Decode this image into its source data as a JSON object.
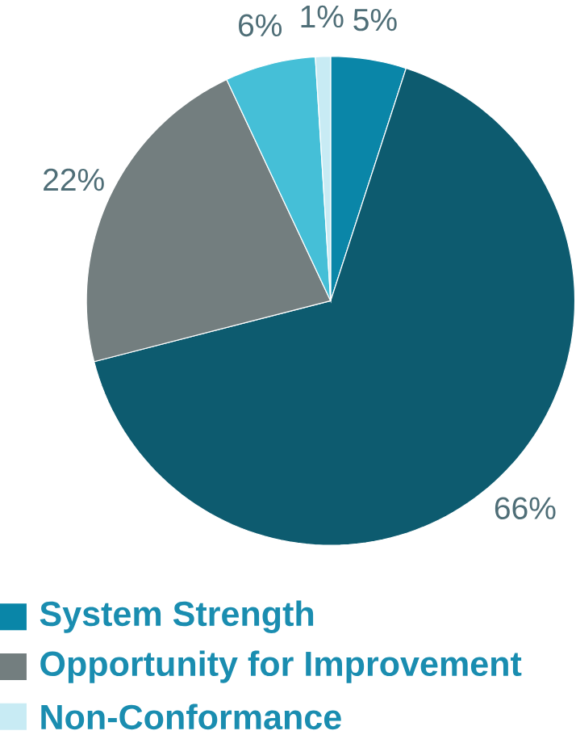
{
  "chart_data": {
    "type": "pie",
    "categories": [
      "System Strength",
      null,
      "Opportunity for Improvement",
      null,
      "Non-Conformance"
    ],
    "values": [
      5,
      66,
      22,
      6,
      1
    ],
    "value_labels": [
      "5%",
      "66%",
      "22%",
      "6%",
      "1%"
    ],
    "colors": [
      "#0a86a8",
      "#0d5b6f",
      "#737e7f",
      "#45bfd7",
      "#c8ebf4"
    ],
    "legend": "bottom"
  }
}
